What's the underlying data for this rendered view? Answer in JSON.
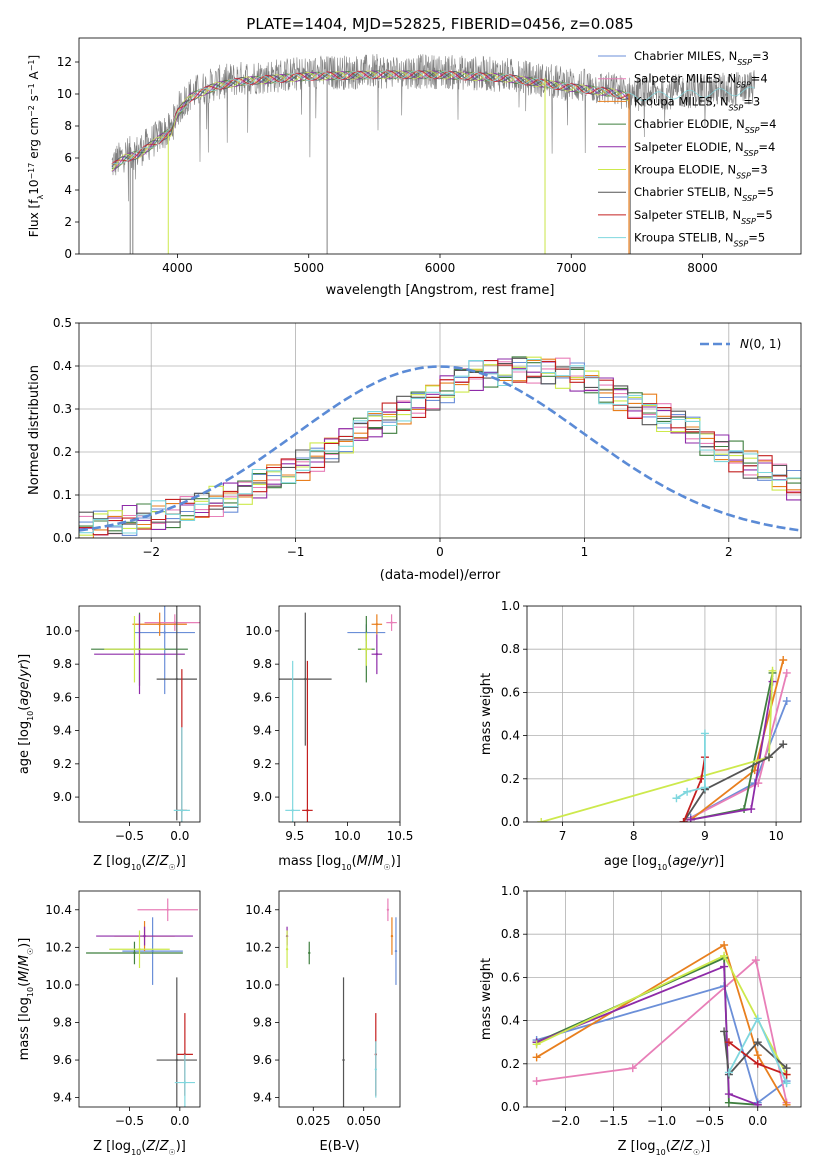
{
  "figure_title": "PLATE=1404, MJD=52825, FIBERID=0456, z=0.085",
  "colors": {
    "Chabrier MILES": "#6b8fd8",
    "Salpeter MILES": "#e87fb8",
    "Kroupa MILES": "#e87f1e",
    "Chabrier ELODIE": "#3f7f3f",
    "Salpeter ELODIE": "#8e2ba8",
    "Kroupa ELODIE": "#cde94c",
    "Chabrier STELIB": "#555555",
    "Salpeter STELIB": "#c42020",
    "Kroupa STELIB": "#7fd7de",
    "data": "#808080",
    "normal": "#5b8bd6"
  },
  "chart_data": [
    {
      "id": "spectrum",
      "type": "line",
      "xlabel": "wavelength [Angstrom, rest frame]",
      "ylabel": "Flux [f_λ10^-17 erg cm^-2 s^-1 A^-1]",
      "xlim": [
        3250,
        8750
      ],
      "ylim": [
        0,
        13.5
      ],
      "xticks": [
        4000,
        5000,
        6000,
        7000,
        8000
      ],
      "yticks": [
        0,
        2,
        4,
        6,
        8,
        10,
        12
      ],
      "legend_position": "top-right",
      "legend": [
        {
          "name": "Chabrier MILES",
          "nssp": "3"
        },
        {
          "name": "Salpeter MILES",
          "nssp": "4"
        },
        {
          "name": "Kroupa MILES",
          "nssp": "3"
        },
        {
          "name": "Chabrier ELODIE",
          "nssp": "4"
        },
        {
          "name": "Salpeter ELODIE",
          "nssp": "4"
        },
        {
          "name": "Kroupa ELODIE",
          "nssp": "3"
        },
        {
          "name": "Chabrier STELIB",
          "nssp": "5"
        },
        {
          "name": "Salpeter STELIB",
          "nssp": "5"
        },
        {
          "name": "Kroupa STELIB",
          "nssp": "5"
        }
      ],
      "continuum": {
        "wave": [
          3500,
          3600,
          3700,
          3800,
          3900,
          3950,
          4000,
          4100,
          4300,
          4500,
          5000,
          5500,
          6000,
          6500,
          7000,
          7300,
          7450
        ],
        "flux": [
          5.6,
          6.2,
          6.4,
          7.0,
          7.6,
          7.8,
          9.0,
          10.0,
          10.7,
          11.0,
          11.3,
          11.4,
          11.4,
          11.2,
          10.6,
          10.3,
          10.0
        ]
      },
      "model_extent": {
        "Kroupa STELIB": [
          3500,
          8400
        ],
        "default": [
          3500,
          7450
        ]
      }
    },
    {
      "id": "residual-histogram",
      "type": "bar",
      "xlabel": "(data-model)/error",
      "ylabel": "Normed distribution",
      "xlim": [
        -2.5,
        2.5
      ],
      "ylim": [
        0,
        0.5
      ],
      "xticks": [
        -2,
        -1,
        0,
        1,
        2
      ],
      "yticks": [
        0,
        0.1,
        0.2,
        0.3,
        0.4,
        0.5
      ],
      "grid": true,
      "legend_position": "top-right",
      "legend_label": "N(0,1)",
      "bin_width": 0.1,
      "bin_start": -2.5,
      "mean_histogram": [
        0.025,
        0.03,
        0.035,
        0.04,
        0.045,
        0.05,
        0.055,
        0.065,
        0.075,
        0.085,
        0.095,
        0.11,
        0.125,
        0.14,
        0.155,
        0.17,
        0.19,
        0.21,
        0.23,
        0.25,
        0.265,
        0.28,
        0.3,
        0.315,
        0.33,
        0.35,
        0.37,
        0.38,
        0.385,
        0.39,
        0.395,
        0.395,
        0.39,
        0.385,
        0.375,
        0.36,
        0.345,
        0.33,
        0.31,
        0.3,
        0.28,
        0.265,
        0.25,
        0.225,
        0.21,
        0.19,
        0.17,
        0.16,
        0.14,
        0.12
      ]
    },
    {
      "id": "age-vs-metallicity",
      "type": "scatter",
      "xlabel": "Z [log10(Z/Z☉)]",
      "ylabel": "age [log10(age/yr)]",
      "xlim": [
        -1.0,
        0.2
      ],
      "ylim": [
        8.85,
        10.15
      ],
      "xticks": [
        -0.5,
        0.0
      ],
      "yticks": [
        9.0,
        9.2,
        9.4,
        9.6,
        9.8,
        10.0
      ],
      "points": [
        {
          "model": "Chabrier MILES",
          "x": -0.15,
          "y": 9.99,
          "xerr": 0.3,
          "yerr": 0.37
        },
        {
          "model": "Salpeter MILES",
          "x": -0.05,
          "y": 10.05,
          "xerr": 0.3,
          "yerr": 0.05
        },
        {
          "model": "Kroupa MILES",
          "x": -0.2,
          "y": 10.04,
          "xerr": 0.27,
          "yerr": 0.07
        },
        {
          "model": "Chabrier ELODIE",
          "x": -0.4,
          "y": 9.89,
          "xerr": 0.48,
          "yerr": 0.22
        },
        {
          "model": "Salpeter ELODIE",
          "x": -0.4,
          "y": 9.86,
          "xerr": 0.45,
          "yerr": 0.24
        },
        {
          "model": "Kroupa ELODIE",
          "x": -0.45,
          "y": 9.89,
          "xerr": 0.3,
          "yerr": 0.2
        },
        {
          "model": "Chabrier STELIB",
          "x": -0.03,
          "y": 9.71,
          "xerr": 0.2,
          "yerr": 0.85
        },
        {
          "model": "Salpeter STELIB",
          "x": 0.02,
          "y": 8.92,
          "xerr": 0.05,
          "yerr": 0.85
        },
        {
          "model": "Kroupa STELIB",
          "x": 0.02,
          "y": 8.92,
          "xerr": 0.08,
          "yerr": 0.5
        }
      ]
    },
    {
      "id": "age-vs-mass",
      "type": "scatter",
      "xlabel": "mass [log10(M/M☉)]",
      "ylabel": "",
      "xlim": [
        9.35,
        10.5
      ],
      "ylim": [
        8.85,
        10.15
      ],
      "xticks": [
        9.5,
        10.0,
        10.5
      ],
      "yticks": [
        9.0,
        9.2,
        9.4,
        9.6,
        9.8,
        10.0
      ],
      "points": [
        {
          "model": "Chabrier MILES",
          "x": 10.18,
          "y": 9.99,
          "xerr": 0.18,
          "yerr": 0.05
        },
        {
          "model": "Salpeter MILES",
          "x": 10.42,
          "y": 10.05,
          "xerr": 0.05,
          "yerr": 0.05
        },
        {
          "model": "Kroupa MILES",
          "x": 10.28,
          "y": 10.04,
          "xerr": 0.05,
          "yerr": 0.06
        },
        {
          "model": "Chabrier ELODIE",
          "x": 10.18,
          "y": 9.89,
          "xerr": 0.08,
          "yerr": 0.2
        },
        {
          "model": "Salpeter ELODIE",
          "x": 10.28,
          "y": 9.86,
          "xerr": 0.05,
          "yerr": 0.12
        },
        {
          "model": "Kroupa ELODIE",
          "x": 10.18,
          "y": 9.89,
          "xerr": 0.05,
          "yerr": 0.1
        },
        {
          "model": "Chabrier STELIB",
          "x": 9.6,
          "y": 9.71,
          "xerr": 0.25,
          "yerr": 0.4
        },
        {
          "model": "Salpeter STELIB",
          "x": 9.62,
          "y": 8.92,
          "xerr": 0.05,
          "yerr": 0.9
        },
        {
          "model": "Kroupa STELIB",
          "x": 9.48,
          "y": 8.92,
          "xerr": 0.07,
          "yerr": 0.9
        }
      ]
    },
    {
      "id": "mass-weight-vs-age",
      "type": "line",
      "xlabel": "age [log10(age/yr)]",
      "ylabel": "mass weight",
      "xlim": [
        6.5,
        10.35
      ],
      "ylim": [
        0,
        1.0
      ],
      "xticks": [
        7,
        8,
        9,
        10
      ],
      "yticks": [
        0,
        0.2,
        0.4,
        0.6,
        0.8,
        1.0
      ],
      "grid": true,
      "series": [
        {
          "model": "Chabrier MILES",
          "x": [
            8.8,
            9.7,
            10.15
          ],
          "y": [
            0.02,
            0.18,
            0.56
          ]
        },
        {
          "model": "Salpeter MILES",
          "x": [
            8.75,
            9.75,
            10.15
          ],
          "y": [
            0.01,
            0.18,
            0.69
          ]
        },
        {
          "model": "Kroupa MILES",
          "x": [
            8.8,
            9.7,
            10.1
          ],
          "y": [
            0.01,
            0.24,
            0.75
          ]
        },
        {
          "model": "Chabrier ELODIE",
          "x": [
            8.8,
            9.55,
            9.95
          ],
          "y": [
            0.01,
            0.06,
            0.69
          ]
        },
        {
          "model": "Salpeter ELODIE",
          "x": [
            8.8,
            9.65,
            9.95
          ],
          "y": [
            0.01,
            0.06,
            0.65
          ]
        },
        {
          "model": "Kroupa ELODIE",
          "x": [
            6.7,
            9.9,
            9.95
          ],
          "y": [
            0.0,
            0.3,
            0.7
          ]
        },
        {
          "model": "Chabrier STELIB",
          "x": [
            8.7,
            9.0,
            9.9,
            10.1
          ],
          "y": [
            0.0,
            0.15,
            0.3,
            0.36
          ]
        },
        {
          "model": "Salpeter STELIB",
          "x": [
            8.7,
            8.95,
            9.0
          ],
          "y": [
            0.0,
            0.2,
            0.3
          ]
        },
        {
          "model": "Kroupa STELIB",
          "x": [
            8.6,
            8.75,
            9.0,
            9.0
          ],
          "y": [
            0.11,
            0.14,
            0.16,
            0.41
          ]
        }
      ]
    },
    {
      "id": "mass-vs-metallicity",
      "type": "scatter",
      "xlabel": "Z [log10(Z/Z☉)]",
      "ylabel": "mass [log10(M/M☉)]",
      "xlim": [
        -1.0,
        0.2
      ],
      "ylim": [
        9.35,
        10.5
      ],
      "xticks": [
        -0.5,
        0.0
      ],
      "yticks": [
        9.4,
        9.6,
        9.8,
        10.0,
        10.2,
        10.4
      ],
      "points": [
        {
          "model": "Chabrier MILES",
          "x": -0.27,
          "y": 10.18,
          "xerr": 0.3,
          "yerr": 0.18
        },
        {
          "model": "Salpeter MILES",
          "x": -0.12,
          "y": 10.4,
          "xerr": 0.3,
          "yerr": 0.06
        },
        {
          "model": "Kroupa MILES",
          "x": -0.35,
          "y": 10.26,
          "xerr": 0.3,
          "yerr": 0.08
        },
        {
          "model": "Chabrier ELODIE",
          "x": -0.45,
          "y": 10.17,
          "xerr": 0.48,
          "yerr": 0.06
        },
        {
          "model": "Salpeter ELODIE",
          "x": -0.35,
          "y": 10.26,
          "xerr": 0.48,
          "yerr": 0.05
        },
        {
          "model": "Kroupa ELODIE",
          "x": -0.4,
          "y": 10.19,
          "xerr": 0.3,
          "yerr": 0.1
        },
        {
          "model": "Chabrier STELIB",
          "x": -0.03,
          "y": 9.6,
          "xerr": 0.2,
          "yerr": 0.44
        },
        {
          "model": "Salpeter STELIB",
          "x": 0.05,
          "y": 9.63,
          "xerr": 0.08,
          "yerr": 0.22
        },
        {
          "model": "Kroupa STELIB",
          "x": 0.05,
          "y": 9.48,
          "xerr": 0.1,
          "yerr": 0.15
        }
      ]
    },
    {
      "id": "mass-vs-ebv",
      "type": "scatter",
      "xlabel": "E(B-V)",
      "ylabel": "",
      "xlim": [
        0.008,
        0.068
      ],
      "ylim": [
        9.35,
        10.5
      ],
      "xticks": [
        0.025,
        0.05
      ],
      "yticks": [
        9.4,
        9.6,
        9.8,
        10.0,
        10.2,
        10.4
      ],
      "points": [
        {
          "model": "Chabrier MILES",
          "x": 0.066,
          "y": 10.18,
          "yerr": 0.18
        },
        {
          "model": "Salpeter MILES",
          "x": 0.062,
          "y": 10.4,
          "yerr": 0.06
        },
        {
          "model": "Kroupa MILES",
          "x": 0.064,
          "y": 10.26,
          "yerr": 0.1
        },
        {
          "model": "Chabrier ELODIE",
          "x": 0.023,
          "y": 10.17,
          "yerr": 0.06
        },
        {
          "model": "Salpeter ELODIE",
          "x": 0.012,
          "y": 10.26,
          "yerr": 0.05
        },
        {
          "model": "Kroupa ELODIE",
          "x": 0.012,
          "y": 10.19,
          "yerr": 0.1
        },
        {
          "model": "Chabrier STELIB",
          "x": 0.04,
          "y": 9.6,
          "yerr": 0.44
        },
        {
          "model": "Salpeter STELIB",
          "x": 0.056,
          "y": 9.63,
          "yerr": 0.22
        },
        {
          "model": "Kroupa STELIB",
          "x": 0.056,
          "y": 9.55,
          "yerr": 0.15
        }
      ]
    },
    {
      "id": "mass-weight-vs-metallicity",
      "type": "line",
      "xlabel": "Z [log10(Z/Z☉)]",
      "ylabel": "mass weight",
      "xlim": [
        -2.4,
        0.45
      ],
      "ylim": [
        0,
        1.0
      ],
      "xticks": [
        -2.0,
        -1.5,
        -1.0,
        -0.5,
        0.0
      ],
      "yticks": [
        0,
        0.2,
        0.4,
        0.6,
        0.8,
        1.0
      ],
      "grid": true,
      "series": [
        {
          "model": "Chabrier MILES",
          "x": [
            -2.3,
            -0.35,
            0.0,
            0.3
          ],
          "y": [
            0.31,
            0.56,
            0.02,
            0.12
          ]
        },
        {
          "model": "Salpeter MILES",
          "x": [
            -2.3,
            -1.3,
            -0.02,
            0.3
          ],
          "y": [
            0.12,
            0.18,
            0.68,
            0.02
          ]
        },
        {
          "model": "Kroupa MILES",
          "x": [
            -2.3,
            -0.35,
            0.0,
            0.3
          ],
          "y": [
            0.23,
            0.75,
            0.24,
            0.01
          ]
        },
        {
          "model": "Chabrier ELODIE",
          "x": [
            -2.3,
            -0.35,
            -0.3,
            0.0
          ],
          "y": [
            0.3,
            0.69,
            0.02,
            0.01
          ]
        },
        {
          "model": "Salpeter ELODIE",
          "x": [
            -2.3,
            -0.35,
            -0.3,
            0.0
          ],
          "y": [
            0.3,
            0.65,
            0.06,
            0.01
          ]
        },
        {
          "model": "Kroupa ELODIE",
          "x": [
            -2.3,
            -0.35,
            0.3
          ],
          "y": [
            0.29,
            0.7,
            0.15
          ]
        },
        {
          "model": "Chabrier STELIB",
          "x": [
            -0.35,
            -0.3,
            0.0,
            0.3
          ],
          "y": [
            0.35,
            0.15,
            0.3,
            0.18
          ]
        },
        {
          "model": "Salpeter STELIB",
          "x": [
            -0.3,
            0.0,
            0.3
          ],
          "y": [
            0.3,
            0.2,
            0.15
          ]
        },
        {
          "model": "Kroupa STELIB",
          "x": [
            -0.3,
            0.0,
            0.3
          ],
          "y": [
            0.16,
            0.41,
            0.11
          ]
        }
      ]
    }
  ]
}
